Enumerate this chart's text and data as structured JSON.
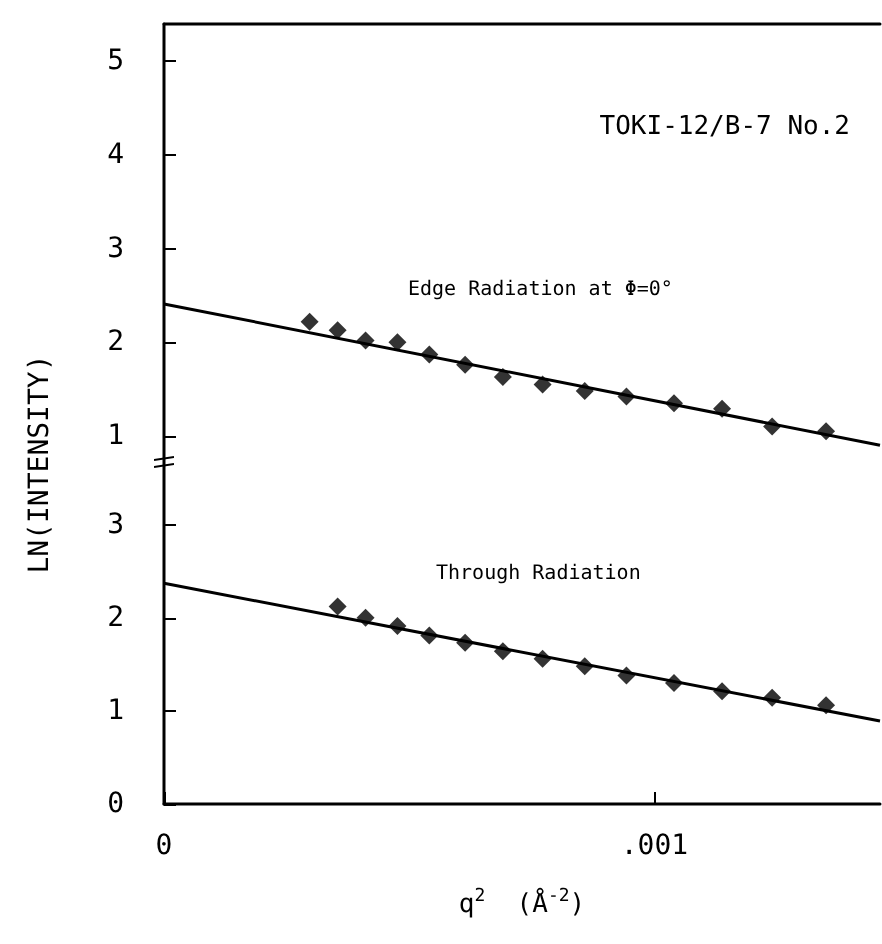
{
  "chart_data": [
    {
      "type": "scatter",
      "annotations": [
        "TOKI-12/B-7 No.2"
      ],
      "ylabel": "LN(INTENSITY)",
      "xlim": [
        0,
        0.00146
      ],
      "ylim": [
        0.7,
        5.4
      ],
      "yticks": [
        1,
        2,
        3,
        4,
        5
      ],
      "tick_labels": "y",
      "marker": "diamond",
      "series": [
        {
          "name": "Edge Radiation at Φ=0°",
          "color": "#000000",
          "x": [
            0.000297,
            0.000354,
            0.000411,
            0.000476,
            0.000541,
            0.000614,
            0.000691,
            0.000772,
            0.000858,
            0.000943,
            0.00104,
            0.001138,
            0.00124,
            0.00135
          ],
          "values": [
            2.22,
            2.13,
            2.02,
            2.0,
            1.87,
            1.76,
            1.63,
            1.55,
            1.48,
            1.42,
            1.35,
            1.29,
            1.1,
            1.05
          ]
        },
        {
          "type": "line",
          "marker": "none",
          "color": "#000000",
          "x": [
            0,
            0.00146
          ],
          "values": [
            2.41,
            0.9
          ]
        }
      ]
    },
    {
      "type": "scatter",
      "xlabel": "q$^{2}$  (Å$^{-2}$)",
      "xlim": [
        0,
        0.00146
      ],
      "ylim": [
        0,
        3.65
      ],
      "xticks": [
        0,
        {
          "value": 0.001,
          "label": ".001"
        }
      ],
      "yticks": [
        0,
        1,
        2,
        3
      ],
      "marker": "diamond",
      "series": [
        {
          "name": "Through Radiation",
          "color": "#000000",
          "x": [
            0.000354,
            0.000411,
            0.000476,
            0.000541,
            0.000614,
            0.000691,
            0.000772,
            0.000858,
            0.000943,
            0.00104,
            0.001138,
            0.00124,
            0.00135
          ],
          "values": [
            2.12,
            2.0,
            1.91,
            1.81,
            1.73,
            1.64,
            1.56,
            1.48,
            1.38,
            1.3,
            1.21,
            1.14,
            1.06
          ]
        },
        {
          "type": "line",
          "marker": "none",
          "color": "#000000",
          "x": [
            0,
            0.00146
          ],
          "values": [
            2.37,
            0.89
          ]
        }
      ]
    }
  ]
}
